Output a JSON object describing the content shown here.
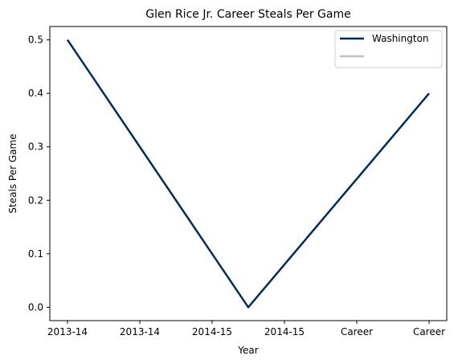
{
  "chart_data": {
    "type": "line",
    "title": "Glen Rice Jr. Career Steals Per Game",
    "xlabel": "Year",
    "ylabel": "Steals Per Game",
    "categories": [
      "2013-14",
      "2013-14",
      "2014-15",
      "2014-15",
      "Career",
      "Career"
    ],
    "ylim": [
      -0.025,
      0.525
    ],
    "yticks": [
      0.0,
      0.1,
      0.2,
      0.3,
      0.4,
      0.5
    ],
    "ytick_labels": [
      "0.0",
      "0.1",
      "0.2",
      "0.3",
      "0.4",
      "0.5"
    ],
    "grid": false,
    "legend_position": "top-right",
    "series": [
      {
        "name": "Washington",
        "color": "#002B5C",
        "points": [
          {
            "x": 0,
            "y": 0.5
          },
          {
            "x": 2.5,
            "y": 0.0
          },
          {
            "x": 5,
            "y": 0.4
          }
        ]
      },
      {
        "name": "",
        "color": "#BEC0C2",
        "points": []
      }
    ]
  }
}
